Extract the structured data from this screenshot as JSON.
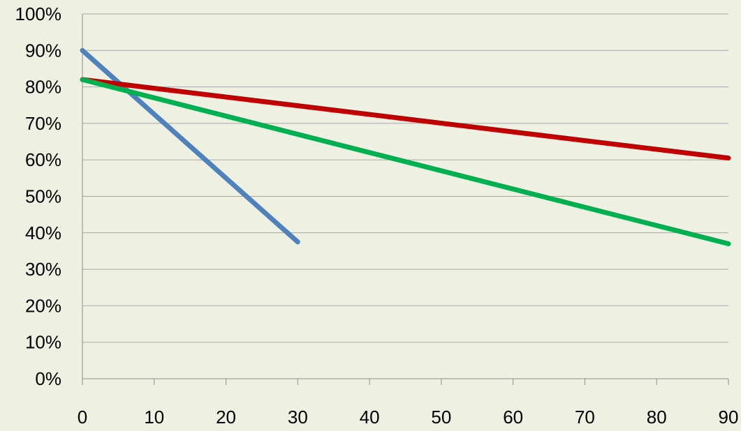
{
  "chart_data": {
    "type": "line",
    "title": "",
    "xlabel": "",
    "ylabel": "",
    "xlim": [
      0,
      90
    ],
    "ylim": [
      0,
      100
    ],
    "x_ticks": [
      0,
      10,
      20,
      30,
      40,
      50,
      60,
      70,
      80,
      90
    ],
    "y_ticks": [
      0,
      10,
      20,
      30,
      40,
      50,
      60,
      70,
      80,
      90,
      100
    ],
    "x_tick_labels": [
      "0",
      "10",
      "20",
      "30",
      "40",
      "50",
      "60",
      "70",
      "80",
      "90"
    ],
    "y_tick_labels": [
      "0%",
      "10%",
      "20%",
      "30%",
      "40%",
      "50%",
      "60%",
      "70%",
      "80%",
      "90%",
      "100%"
    ],
    "grid": true,
    "legend": "none",
    "series": [
      {
        "color": "#4f81bd",
        "x": [
          0,
          30
        ],
        "y": [
          90,
          37.5
        ]
      },
      {
        "color": "#c00000",
        "x": [
          0,
          90
        ],
        "y": [
          82,
          60.5
        ]
      },
      {
        "color": "#00b050",
        "x": [
          0,
          90
        ],
        "y": [
          82,
          37
        ]
      }
    ]
  },
  "colors": {
    "background": "#eef1e1",
    "gridline": "#a6a6a6",
    "axis": "#8c8c8c"
  }
}
